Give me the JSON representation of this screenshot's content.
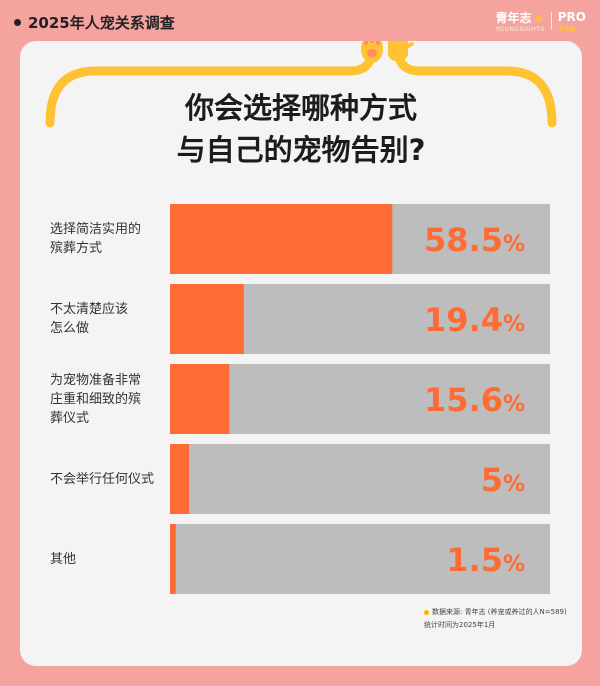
{
  "header": {
    "title": "2025年人宠关系调查",
    "brand_name": "青年志",
    "brand_sub": "YOUNGSIGHTS",
    "pro": "PRO",
    "pro_sub": "专业版"
  },
  "headline": {
    "line1": "你会选择哪种方式",
    "line2": "与自己的宠物告别?"
  },
  "colors": {
    "page_bg": "#f5a39f",
    "card_bg": "#f4f4f4",
    "bar_fill": "#ff6b35",
    "bar_track": "#bdbdbd",
    "value_text": "#ff6b35",
    "decor_line": "#ffc233"
  },
  "icons": [
    "paw-icon",
    "raised-hand-icon"
  ],
  "chart_data": {
    "type": "bar",
    "orientation": "horizontal",
    "categories": [
      [
        "选择简洁实用的",
        "殡葬方式"
      ],
      [
        "不太清楚应该",
        "怎么做"
      ],
      [
        "为宠物准备非常",
        "庄重和细致的殡",
        "葬仪式"
      ],
      [
        "不会举行任何仪式"
      ],
      [
        "其他"
      ]
    ],
    "values": [
      58.5,
      19.4,
      15.6,
      5,
      1.5
    ],
    "value_labels": [
      "58.5",
      "19.4",
      "15.6",
      "5",
      "1.5"
    ],
    "unit": "%",
    "xlim": [
      0,
      100
    ]
  },
  "source": {
    "line1": "数据来源: 青年志 (养宠或养过的人N=589)",
    "line2": "统计时间为2025年1月"
  }
}
